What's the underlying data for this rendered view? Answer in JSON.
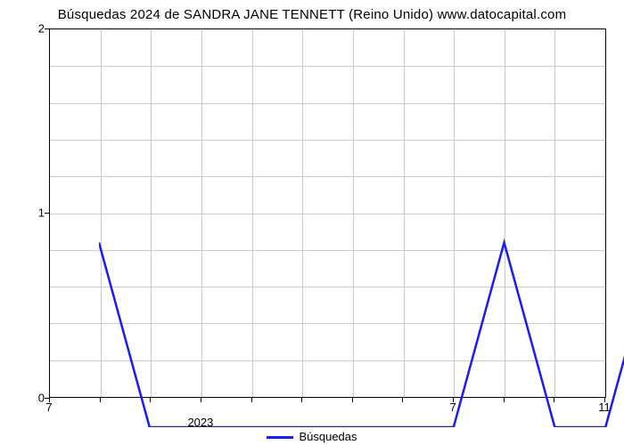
{
  "chart": {
    "type": "line",
    "title": "Búsquedas 2024 de SANDRA JANE TENNETT (Reino Unido) www.datocapital.com",
    "title_fontsize": 15,
    "title_color": "#000000",
    "background_color": "#ffffff",
    "plot_border_color": "#000000",
    "grid_color": "#cccccc",
    "line_color": "#1a1aff",
    "line_width": 2.5,
    "ylim": [
      0,
      2
    ],
    "major_yticks": [
      0,
      1,
      2
    ],
    "minor_ytick_count_between": 4,
    "x_points": 12,
    "x_major_ticks": [
      0,
      8,
      11
    ],
    "x_major_labels": [
      "7",
      "7",
      "11"
    ],
    "x_sublabel": "2023",
    "x_sublabel_index": 3,
    "values": [
      1,
      0,
      0,
      0,
      0,
      0,
      0,
      0,
      1,
      0,
      0,
      1
    ],
    "legend_label": "Búsquedas"
  }
}
